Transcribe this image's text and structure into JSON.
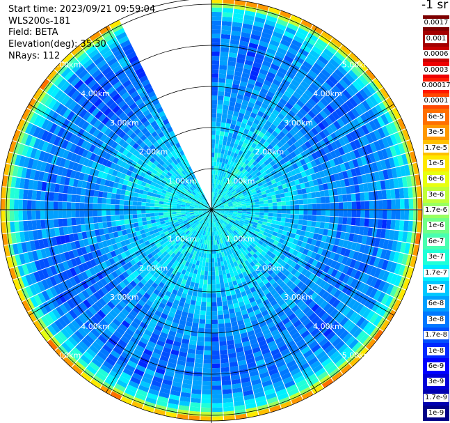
{
  "header": {
    "start_time": "Start time: 2023/09/21 09:59:04",
    "instrument": "WLS200s-181",
    "field": "Field: BETA",
    "elevation": "Elevation(deg): 35.30",
    "nrays": "NRays: 112"
  },
  "colorbar": {
    "unit_label": "-1 sr",
    "levels": [
      {
        "label": "0.0017",
        "color": "#7d0000"
      },
      {
        "label": "0.001",
        "color": "#a30000"
      },
      {
        "label": "0.0006",
        "color": "#c80000"
      },
      {
        "label": "0.0003",
        "color": "#ee0000"
      },
      {
        "label": "0.00017",
        "color": "#ff1a00"
      },
      {
        "label": "0.0001",
        "color": "#ff4800"
      },
      {
        "label": "6e-5",
        "color": "#ff7000"
      },
      {
        "label": "3e-5",
        "color": "#ff9800"
      },
      {
        "label": "1.7e-5",
        "color": "#ffc000"
      },
      {
        "label": "1e-5",
        "color": "#ffe800"
      },
      {
        "label": "6e-6",
        "color": "#e8ff10"
      },
      {
        "label": "3e-6",
        "color": "#c0ff38"
      },
      {
        "label": "1.7e-6",
        "color": "#98ff60"
      },
      {
        "label": "1e-6",
        "color": "#70ff88"
      },
      {
        "label": "6e-7",
        "color": "#48ffb0"
      },
      {
        "label": "3e-7",
        "color": "#20ffd8"
      },
      {
        "label": "1.7e-7",
        "color": "#00f0ff"
      },
      {
        "label": "1e-7",
        "color": "#00c8ff"
      },
      {
        "label": "6e-8",
        "color": "#00a0ff"
      },
      {
        "label": "3e-8",
        "color": "#0078ff"
      },
      {
        "label": "1.7e-8",
        "color": "#0050ff"
      },
      {
        "label": "1e-8",
        "color": "#0028ff"
      },
      {
        "label": "6e-9",
        "color": "#0000ff"
      },
      {
        "label": "3e-9",
        "color": "#0000d8"
      },
      {
        "label": "1.7e-9",
        "color": "#0000b0"
      },
      {
        "label": "1e-9",
        "color": "#000088"
      }
    ]
  },
  "chart_data": {
    "type": "heatmap",
    "plot_type": "polar PPI scan",
    "field": "BETA",
    "units": "-1 sr",
    "elevation_deg": 35.3,
    "nrays": 112,
    "start_time": "2023/09/21 09:59:04",
    "range_rings_km": [
      1.0,
      2.0,
      3.0,
      4.0,
      5.0
    ],
    "range_ring_labels": [
      "1.00km",
      "2.00km",
      "3.00km",
      "4.00km",
      "5.00km"
    ],
    "azimuth_spoke_step_deg": 30,
    "missing_sector_azimuth_deg": [
      333,
      360
    ],
    "profile_by_range": [
      {
        "range_km": 0.5,
        "beta": 1.7e-07
      },
      {
        "range_km": 1.0,
        "beta": 1.5e-07
      },
      {
        "range_km": 1.5,
        "beta": 1.2e-07
      },
      {
        "range_km": 2.0,
        "beta": 9e-08
      },
      {
        "range_km": 2.5,
        "beta": 6e-08
      },
      {
        "range_km": 3.0,
        "beta": 4e-08
      },
      {
        "range_km": 3.5,
        "beta": 3e-08
      },
      {
        "range_km": 4.0,
        "beta": 3e-08
      },
      {
        "range_km": 4.5,
        "beta": 4e-08
      },
      {
        "range_km": 4.9,
        "beta": 3e-07
      },
      {
        "range_km": 5.1,
        "beta": 3e-05
      },
      {
        "range_km": 5.25,
        "beta": 6e-06
      },
      {
        "range_km": 5.45,
        "beta": 3e-07
      },
      {
        "range_km": 5.7,
        "beta": 5e-08
      },
      {
        "range_km": 5.95,
        "beta": 3e-08
      }
    ]
  }
}
